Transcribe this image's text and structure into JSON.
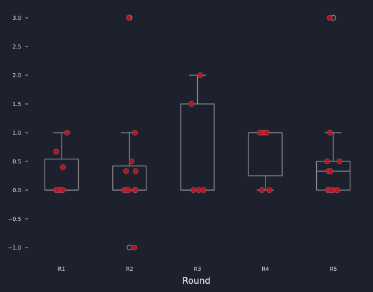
{
  "chart_data": {
    "type": "box",
    "xlabel": "Round",
    "ylabel": "",
    "categories": [
      "R1",
      "R2",
      "R3",
      "R4",
      "R5"
    ],
    "ylim": [
      -1.2,
      3.1
    ],
    "yticks": [
      -1.0,
      -0.5,
      0.0,
      0.5,
      1.0,
      1.5,
      2.0,
      2.5,
      3.0
    ],
    "ytick_labels": [
      "−1.0",
      "−0.5",
      "0.0",
      "0.5",
      "1.0",
      "1.5",
      "2.0",
      "2.5",
      "3.0"
    ],
    "boxes": [
      {
        "category": "R1",
        "whisker_low": 0.0,
        "q1": 0.0,
        "median": 0.0,
        "q3": 0.54,
        "whisker_high": 1.0,
        "outliers": []
      },
      {
        "category": "R2",
        "whisker_low": 0.0,
        "q1": 0.0,
        "median": 0.0,
        "q3": 0.42,
        "whisker_high": 1.0,
        "outliers": [
          3.0,
          -1.0
        ]
      },
      {
        "category": "R3",
        "whisker_low": 0.0,
        "q1": 0.0,
        "median": 0.0,
        "q3": 1.5,
        "whisker_high": 2.0,
        "outliers": []
      },
      {
        "category": "R4",
        "whisker_low": 0.0,
        "q1": 0.25,
        "median": 1.0,
        "q3": 1.0,
        "whisker_high": 1.0,
        "outliers": []
      },
      {
        "category": "R5",
        "whisker_low": 0.0,
        "q1": 0.0,
        "median": 0.33,
        "q3": 0.5,
        "whisker_high": 1.0,
        "outliers": [
          3.0
        ]
      }
    ],
    "points": [
      {
        "category": "R1",
        "values": [
          0.0,
          0.0,
          0.0,
          0.0,
          0.0,
          0.4,
          0.67,
          1.0
        ],
        "offsets": [
          -0.08,
          -0.04,
          0.0,
          0.02,
          -0.06,
          0.02,
          -0.08,
          0.08
        ]
      },
      {
        "category": "R2",
        "values": [
          0.0,
          0.0,
          0.0,
          0.0,
          0.0,
          0.33,
          0.33,
          0.5,
          1.0,
          3.0,
          -1.0
        ],
        "offsets": [
          -0.08,
          -0.04,
          -0.02,
          0.08,
          0.09,
          -0.05,
          0.09,
          0.03,
          0.08,
          -0.01,
          0.07
        ],
        "point_style": "filled"
      },
      {
        "category": "R3",
        "values": [
          0.0,
          0.0,
          0.0,
          1.5,
          2.0
        ],
        "offsets": [
          -0.06,
          0.02,
          0.09,
          -0.09,
          0.04
        ]
      },
      {
        "category": "R4",
        "values": [
          0.0,
          0.0,
          1.0,
          1.0,
          1.0,
          1.0
        ],
        "offsets": [
          -0.05,
          0.06,
          -0.08,
          -0.03,
          0.0,
          0.02
        ]
      },
      {
        "category": "R5",
        "values": [
          0.0,
          0.0,
          0.0,
          0.0,
          0.0,
          0.33,
          0.33,
          0.5,
          0.5,
          1.0,
          3.0
        ],
        "offsets": [
          -0.08,
          -0.06,
          0.0,
          0.06,
          -0.03,
          -0.07,
          -0.04,
          -0.09,
          0.09,
          -0.05,
          -0.05
        ]
      }
    ],
    "grid": false,
    "legend": "none",
    "colors": {
      "background": "#1c212d",
      "box_edge": "#8e8e93",
      "point_fill": "#c8101e",
      "point_edge": "#9a4a55",
      "text": "#e8e8e8"
    }
  }
}
